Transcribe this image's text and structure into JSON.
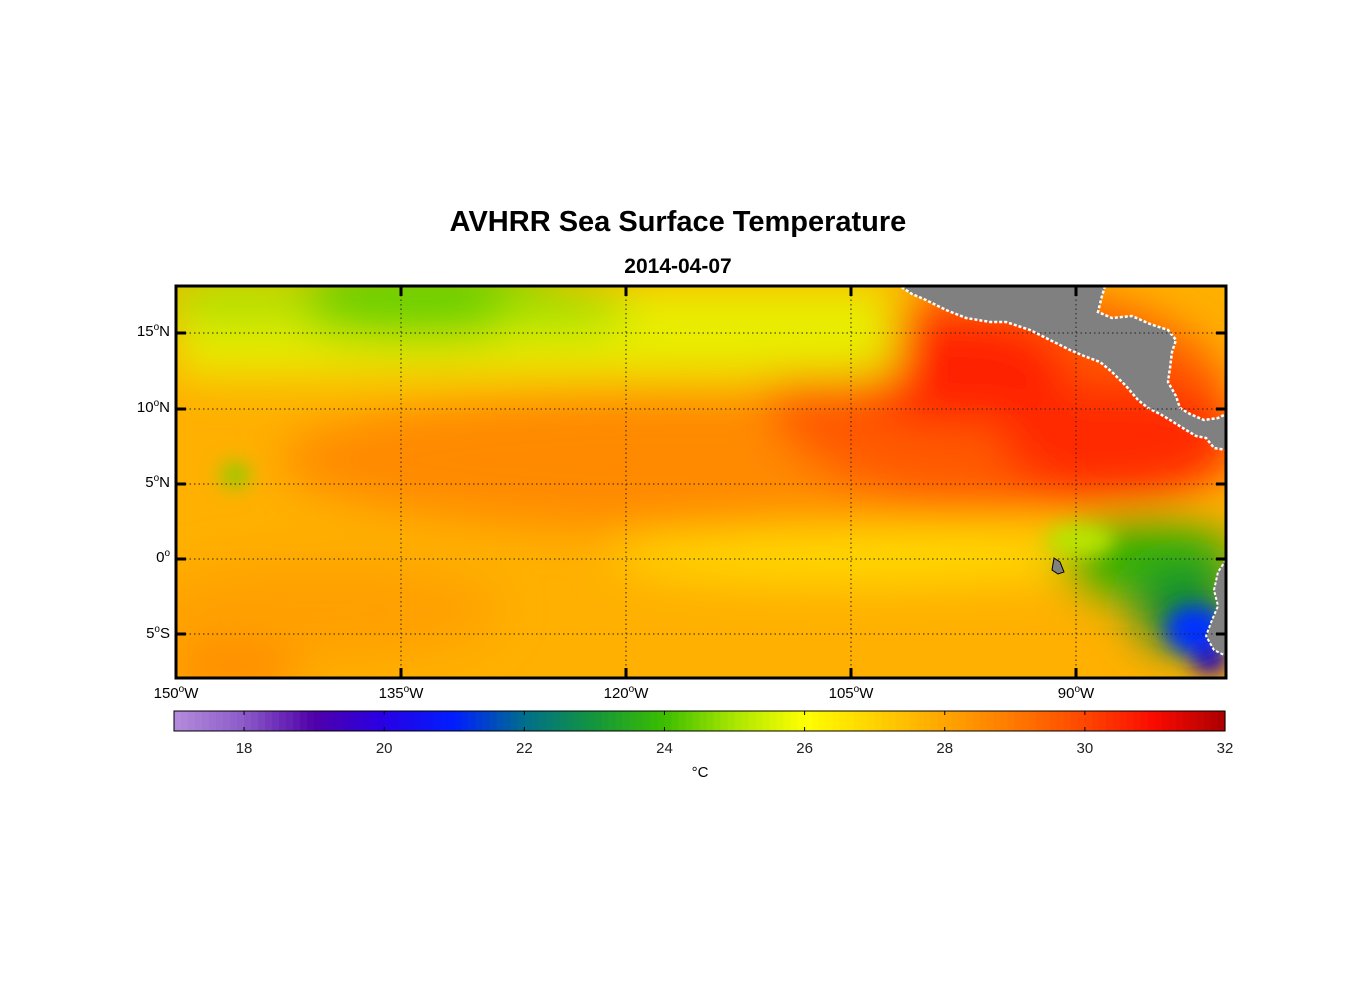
{
  "figure": {
    "title": "AVHRR Sea Surface Temperature",
    "subtitle": "2014-04-07",
    "colorbar_unit": "°C"
  },
  "colors": {
    "land": "#808080",
    "frame": "#000000"
  },
  "map": {
    "lon_range": [
      -150,
      -80
    ],
    "lat_range": [
      -8,
      18
    ],
    "lat_ticks": [
      {
        "value": 15,
        "text": "15",
        "hemi": "N"
      },
      {
        "value": 10,
        "text": "10",
        "hemi": "N"
      },
      {
        "value": 5,
        "text": "5",
        "hemi": "N"
      },
      {
        "value": 0,
        "text": "0",
        "hemi": ""
      },
      {
        "value": -5,
        "text": "5",
        "hemi": "S"
      }
    ],
    "lon_ticks": [
      {
        "value": -150,
        "text": "150",
        "hemi": "W"
      },
      {
        "value": -135,
        "text": "135",
        "hemi": "W"
      },
      {
        "value": -120,
        "text": "120",
        "hemi": "W"
      },
      {
        "value": -105,
        "text": "105",
        "hemi": "W"
      },
      {
        "value": -90,
        "text": "90",
        "hemi": "W"
      }
    ]
  },
  "colorbar": {
    "range": [
      17,
      32
    ],
    "ticks": [
      18,
      20,
      22,
      24,
      26,
      28,
      30,
      32
    ]
  }
}
